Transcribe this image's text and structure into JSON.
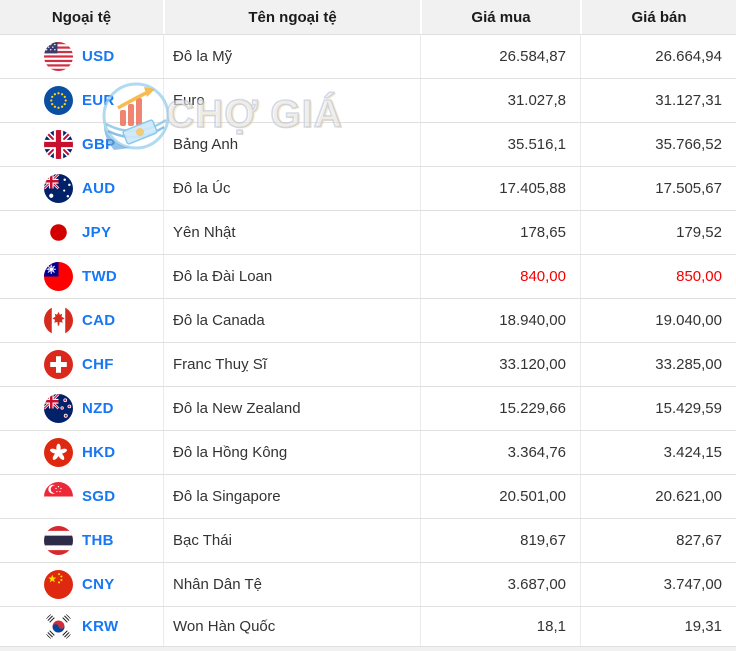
{
  "table": {
    "columns": [
      {
        "label": "Ngoại tệ"
      },
      {
        "label": "Tên ngoại tệ"
      },
      {
        "label": "Giá mua"
      },
      {
        "label": "Giá bán"
      }
    ],
    "rows": [
      {
        "code": "USD",
        "flag": "us",
        "name": "Đô la Mỹ",
        "buy": "26.584,87",
        "sell": "26.664,94",
        "highlight": false
      },
      {
        "code": "EUR",
        "flag": "eu",
        "name": "Euro",
        "buy": "31.027,8",
        "sell": "31.127,31",
        "highlight": false
      },
      {
        "code": "GBP",
        "flag": "gb",
        "name": "Bảng Anh",
        "buy": "35.516,1",
        "sell": "35.766,52",
        "highlight": false
      },
      {
        "code": "AUD",
        "flag": "au",
        "name": "Đô la Úc",
        "buy": "17.405,88",
        "sell": "17.505,67",
        "highlight": false
      },
      {
        "code": "JPY",
        "flag": "jp",
        "name": "Yên Nhật",
        "buy": "178,65",
        "sell": "179,52",
        "highlight": false
      },
      {
        "code": "TWD",
        "flag": "tw",
        "name": "Đô la Đài Loan",
        "buy": "840,00",
        "sell": "850,00",
        "highlight": true
      },
      {
        "code": "CAD",
        "flag": "ca",
        "name": "Đô la Canada",
        "buy": "18.940,00",
        "sell": "19.040,00",
        "highlight": false
      },
      {
        "code": "CHF",
        "flag": "ch",
        "name": "Franc Thuỵ Sĩ",
        "buy": "33.120,00",
        "sell": "33.285,00",
        "highlight": false
      },
      {
        "code": "NZD",
        "flag": "nz",
        "name": "Đô la New Zealand",
        "buy": "15.229,66",
        "sell": "15.429,59",
        "highlight": false
      },
      {
        "code": "HKD",
        "flag": "hk",
        "name": "Đô la Hồng Kông",
        "buy": "3.364,76",
        "sell": "3.424,15",
        "highlight": false
      },
      {
        "code": "SGD",
        "flag": "sg",
        "name": "Đô la Singapore",
        "buy": "20.501,00",
        "sell": "20.621,00",
        "highlight": false
      },
      {
        "code": "THB",
        "flag": "th",
        "name": "Bạc Thái",
        "buy": "819,67",
        "sell": "827,67",
        "highlight": false
      },
      {
        "code": "CNY",
        "flag": "cn",
        "name": "Nhân Dân Tệ",
        "buy": "3.687,00",
        "sell": "3.747,00",
        "highlight": false
      },
      {
        "code": "KRW",
        "flag": "kr",
        "name": "Won Hàn Quốc",
        "buy": "18,1",
        "sell": "19,31",
        "highlight": false
      }
    ]
  },
  "watermark": {
    "text": "CHỢ GIÁ"
  },
  "colors": {
    "code_link_blue": "#1877f2",
    "highlight_red": "#f30000",
    "header_bg": "#f1f1f1",
    "row_border": "#e0e0e0"
  }
}
